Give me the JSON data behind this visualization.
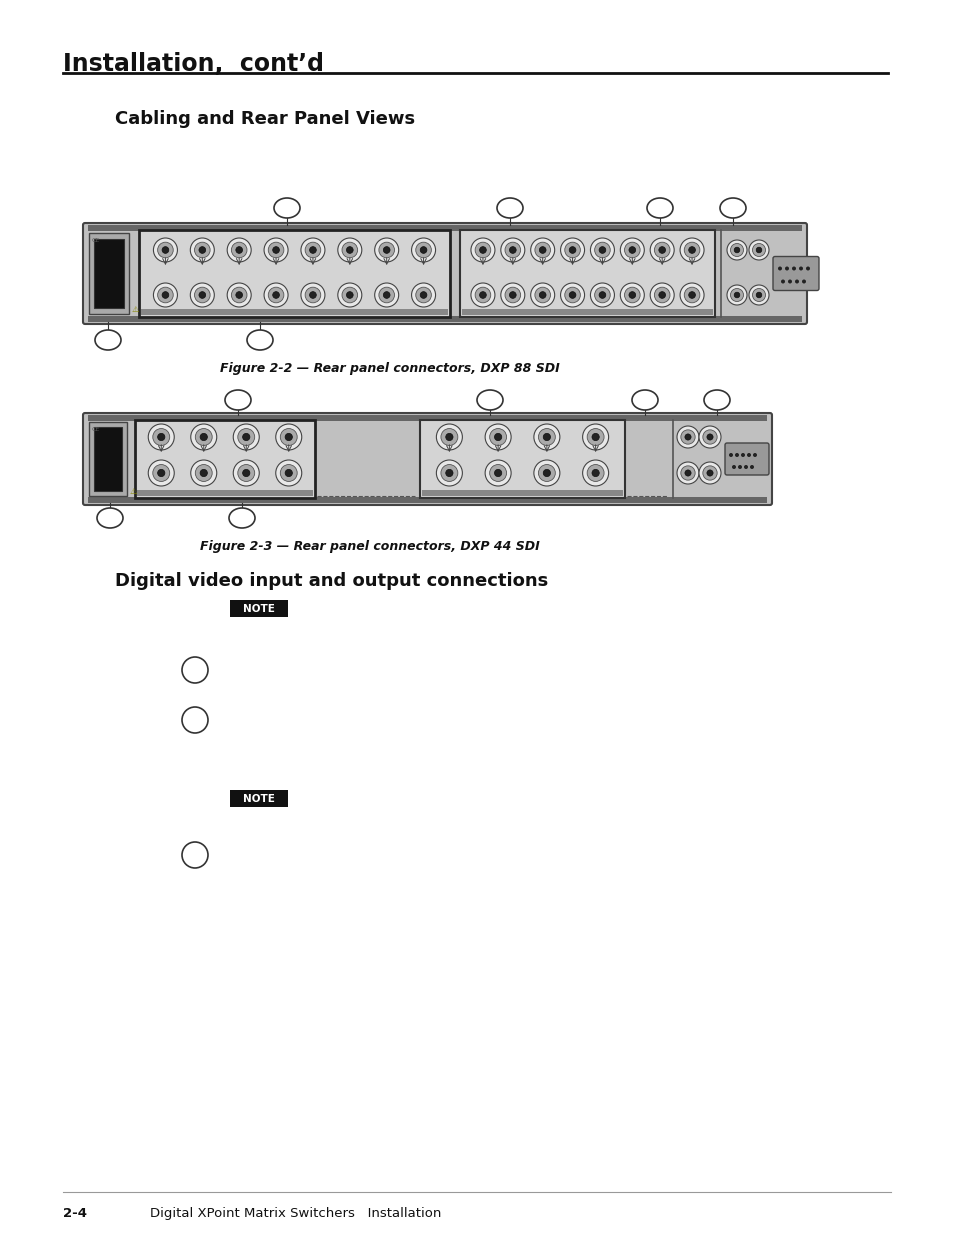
{
  "bg_color": "#ffffff",
  "page_title": "Installation,  cont’d",
  "section_title": "Cabling and Rear Panel Views",
  "fig22_caption": "Figure 2-2 — Rear panel connectors, DXP 88 SDI",
  "fig23_caption": "Figure 2-3 — Rear panel connectors, DXP 44 SDI",
  "digital_section_title": "Digital video input and output connections",
  "footer_page": "2-4",
  "footer_text": "Digital XPoint Matrix Switchers   Installation",
  "note_bg": "#1a1a1a",
  "note_text_color": "#ffffff",
  "note_label": "NOTE",
  "panel_fill": "#c8c8c8",
  "panel_edge": "#333333",
  "bnc_outer": "#aaaaaa",
  "bnc_mid": "#888888",
  "bnc_inner": "#333333"
}
